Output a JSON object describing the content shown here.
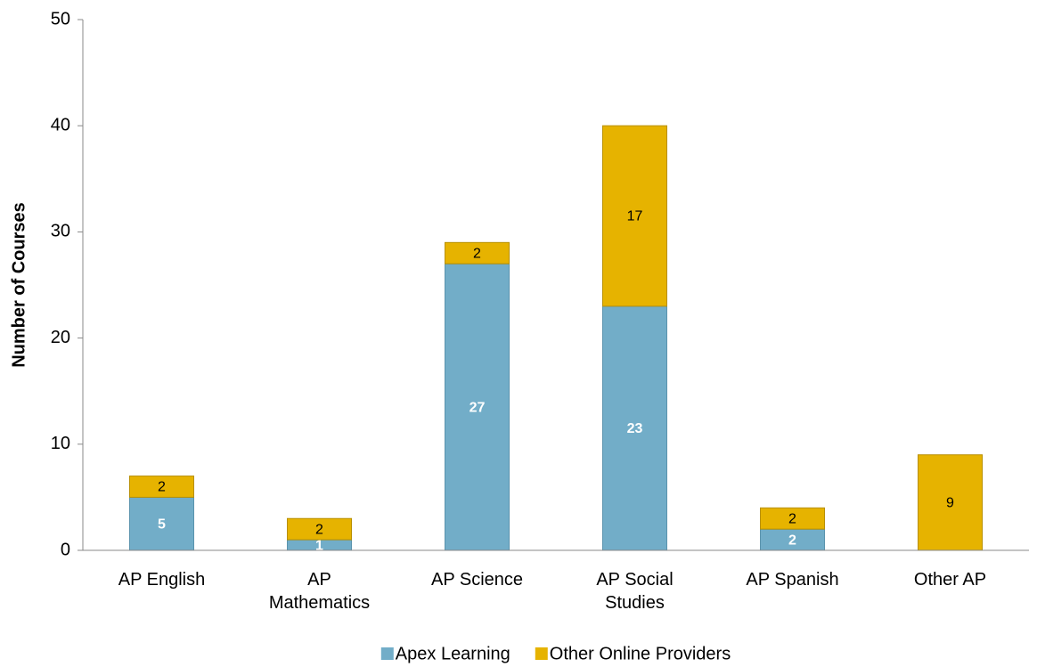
{
  "chart_data": {
    "type": "stacked_bar",
    "y_label": "Number of Courses",
    "categories": [
      "AP English",
      "AP Mathematics",
      "AP Science",
      "AP Social Studies",
      "AP Spanish",
      "Other AP"
    ],
    "series": [
      {
        "name": "Apex Learning",
        "color": "#72adc8",
        "values": [
          5,
          1,
          27,
          23,
          2,
          0
        ]
      },
      {
        "name": "Other Online Providers",
        "color": "#e6b300",
        "values": [
          2,
          2,
          2,
          17,
          2,
          9
        ]
      }
    ],
    "ylim": [
      0,
      50
    ],
    "yticks": [
      0,
      10,
      20,
      30,
      40,
      50
    ],
    "legend": "bottom"
  }
}
